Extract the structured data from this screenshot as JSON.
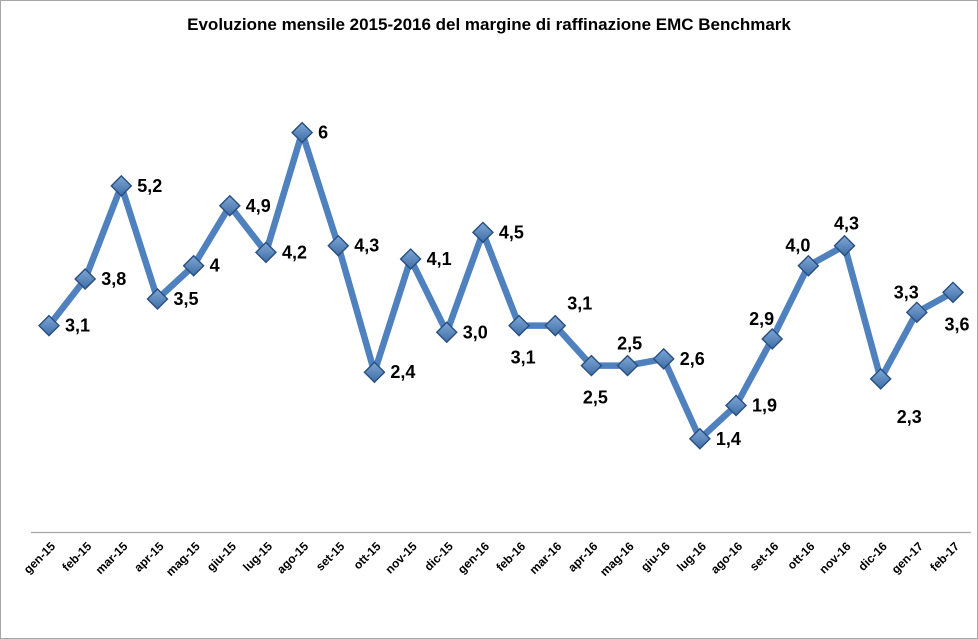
{
  "page": {
    "background": "#FFFFFF",
    "border_color": "#A6A6A6"
  },
  "chart_data": {
    "type": "line",
    "title": "Evoluzione mensile 2015-2016 del margine di raffinazione EMC Benchmark",
    "xlabel": "",
    "ylabel": "",
    "ylim": [
      0,
      7
    ],
    "grid": false,
    "legend": false,
    "marker": "diamond",
    "categories": [
      "gen-15",
      "feb-15",
      "mar-15",
      "apr-15",
      "mag-15",
      "giu-15",
      "lug-15",
      "ago-15",
      "set-15",
      "ott-15",
      "nov-15",
      "dic-15",
      "gen-16",
      "feb-16",
      "mar-16",
      "apr-16",
      "mag-16",
      "giu-16",
      "lug-16",
      "ago-16",
      "set-16",
      "ott-16",
      "nov-16",
      "dic-16",
      "gen-17",
      "feb-17"
    ],
    "values": [
      3.1,
      3.8,
      5.2,
      3.5,
      4,
      4.9,
      4.2,
      6,
      4.3,
      2.4,
      4.1,
      3.0,
      4.5,
      3.1,
      3.1,
      2.5,
      2.5,
      2.6,
      1.4,
      1.9,
      2.9,
      4.0,
      4.3,
      2.3,
      3.3,
      3.6
    ],
    "point_labels": [
      "3,1",
      "3,8",
      "5,2",
      "3,5",
      "4",
      "4,9",
      "4,2",
      "6",
      "4,3",
      "2,4",
      "4,1",
      "3,0",
      "4,5",
      "3,1",
      "3,1",
      "2,5",
      "2,5",
      "2,6",
      "1,4",
      "1,9",
      "2,9",
      "4,0",
      "4,3",
      "2,3",
      "3,3",
      "3,6"
    ],
    "label_positions": [
      "right",
      "right",
      "right",
      "right",
      "right",
      "right",
      "right",
      "right",
      "right",
      "right",
      "right",
      "right",
      "right",
      "below",
      "above-right",
      "below",
      "above",
      "right",
      "right",
      "right",
      "above-left",
      "above-left",
      "above",
      "below-right",
      "above-left",
      "below"
    ],
    "colors": {
      "line": "#4E81BD",
      "marker_top": "#7FA7D6",
      "marker_bottom": "#3E6DA5",
      "marker_border": "#2A4E80",
      "axis": "#A6A6A6",
      "label_text": "#000000",
      "title_text": "#000000"
    }
  }
}
